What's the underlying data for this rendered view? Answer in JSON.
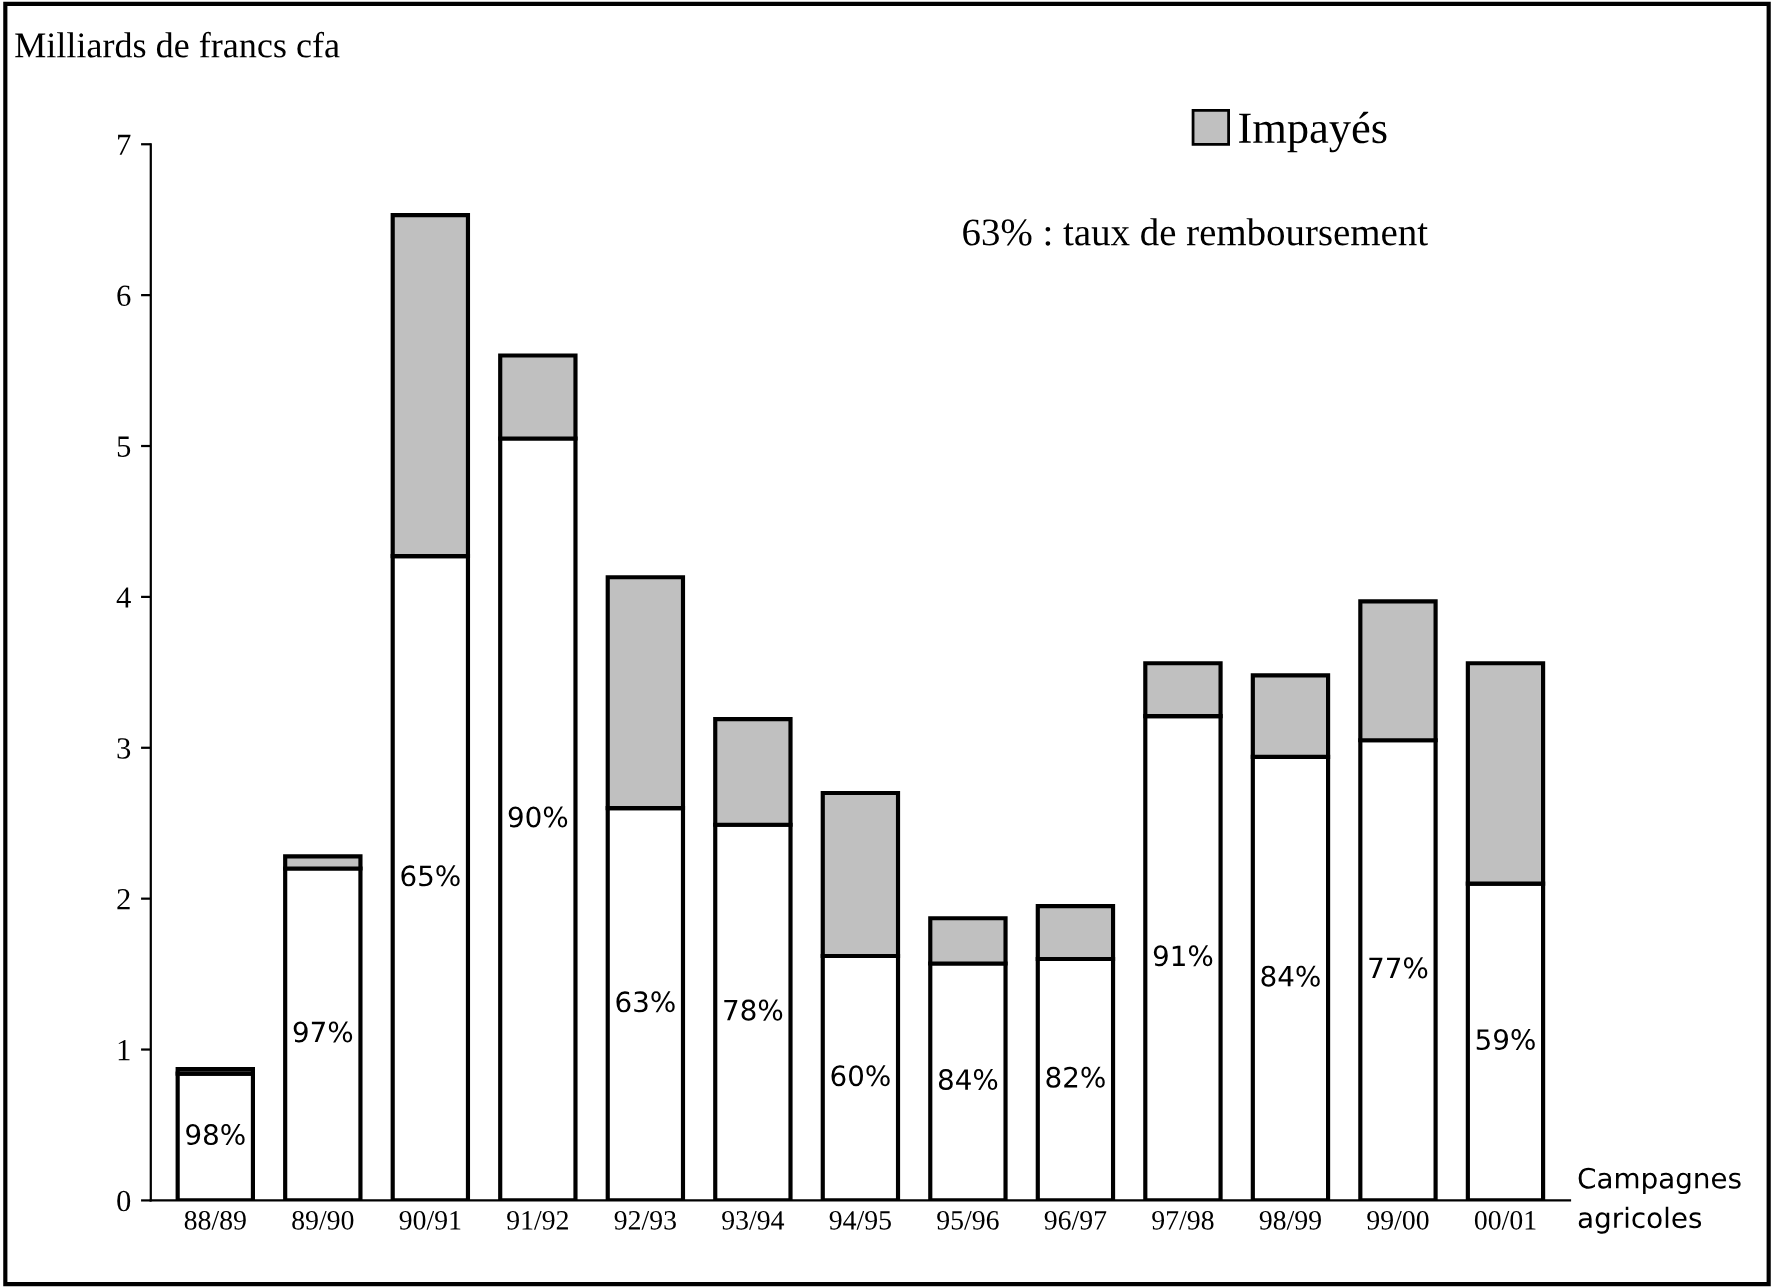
{
  "chart_data": {
    "type": "bar",
    "stacked": true,
    "ylabel": "Milliards de francs cfa",
    "xlabel": "Campagnes\nagricoles",
    "categories": [
      "88/89",
      "89/90",
      "90/91",
      "91/92",
      "92/93",
      "93/94",
      "94/95",
      "95/96",
      "96/97",
      "97/98",
      "98/99",
      "99/00",
      "00/01"
    ],
    "series": [
      {
        "color": "#ffffff",
        "values": [
          0.84,
          2.2,
          4.27,
          5.05,
          2.6,
          2.49,
          1.62,
          1.57,
          1.6,
          3.21,
          2.94,
          3.05,
          2.1
        ]
      },
      {
        "name": "Impayés",
        "color": "#c0c0c0",
        "values": [
          0.03,
          0.08,
          2.26,
          0.55,
          1.53,
          0.7,
          1.08,
          0.3,
          0.35,
          0.35,
          0.54,
          0.92,
          1.46
        ]
      }
    ],
    "ylim": [
      0,
      7
    ],
    "yticks": [
      0,
      1,
      2,
      3,
      4,
      5,
      6,
      7
    ],
    "grid": false,
    "legend": "top right",
    "annotations": [
      "63% : taux de remboursement",
      "98%",
      "97%",
      "65%",
      "90%",
      "63%",
      "78%",
      "60%",
      "84%",
      "82%",
      "91%",
      "84%",
      "77%",
      "59%"
    ]
  }
}
